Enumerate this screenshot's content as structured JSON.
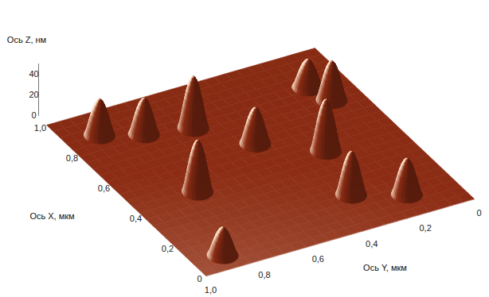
{
  "chart_data": {
    "type": "surface",
    "x_label": "Ось X, мкм",
    "y_label": "Ось Y, мкм",
    "z_label": "Ось Z, нм",
    "xlim": [
      0,
      1
    ],
    "ylim": [
      0,
      1
    ],
    "zlim": [
      0,
      50
    ],
    "xticks": [
      0,
      {
        "value": 0.2,
        "label": "0,2"
      },
      {
        "value": 0.4,
        "label": "0,4"
      },
      {
        "value": 0.6,
        "label": "0,6"
      },
      {
        "value": 0.8,
        "label": "0,8"
      },
      {
        "value": 1.0,
        "label": "1,0"
      }
    ],
    "yticks": [
      0,
      {
        "value": 0.2,
        "label": "0,2"
      },
      {
        "value": 0.4,
        "label": "0,4"
      },
      {
        "value": 0.6,
        "label": "0,6"
      },
      {
        "value": 0.8,
        "label": "0,8"
      },
      {
        "value": 1.0,
        "label": "1,0"
      }
    ],
    "zticks": [
      0,
      20,
      40
    ],
    "x": [
      0.87,
      0.81,
      0.77,
      0.81,
      0.71,
      0.6,
      0.46,
      0.44,
      0.2,
      0.12,
      0.08
    ],
    "y": [
      0.88,
      0.75,
      0.59,
      0.14,
      0.11,
      0.46,
      0.28,
      0.77,
      0.34,
      0.18,
      0.89
    ],
    "z": [
      35,
      35,
      50,
      27,
      38,
      35,
      50,
      50,
      42,
      35,
      27
    ],
    "color": "#8c2c14"
  }
}
